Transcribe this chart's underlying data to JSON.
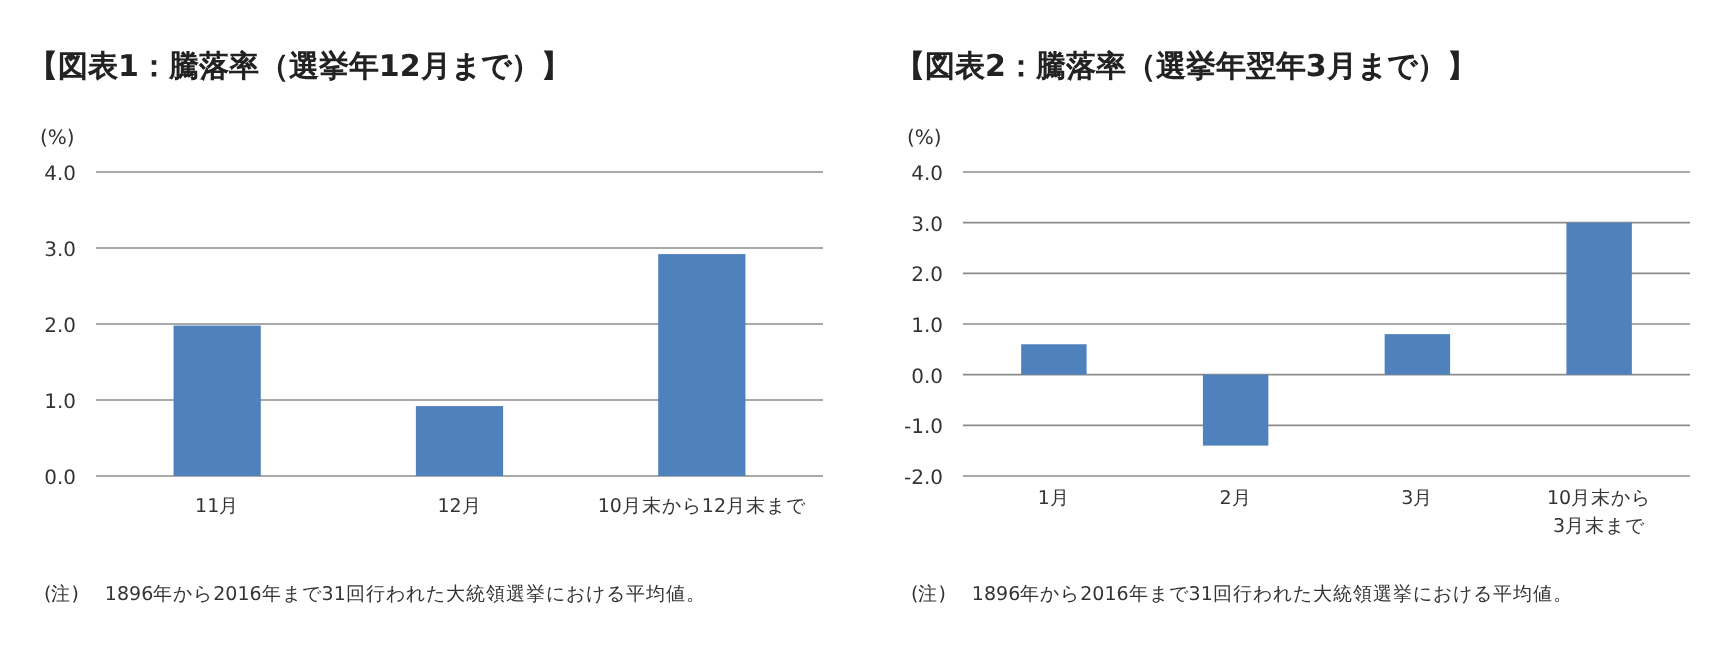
{
  "chart_data": [
    {
      "type": "bar",
      "title": "【図表1：騰落率（選挙年12月まで）】",
      "ylabel": "(%)",
      "categories": [
        "11月",
        "12月",
        "10月末から12月末まで"
      ],
      "values": [
        1.98,
        0.92,
        2.92
      ],
      "color": "#4f81bd",
      "ylim": [
        0,
        4
      ],
      "yticks": [
        {
          "value": 0,
          "label": "0.0"
        },
        {
          "value": 1,
          "label": "1.0"
        },
        {
          "value": 2,
          "label": "2.0"
        },
        {
          "value": 3,
          "label": "3.0"
        },
        {
          "value": 4,
          "label": "4.0"
        }
      ],
      "grid": "y",
      "annotations": [
        "(注)　 1896年から2016年まで31回行われた大統領選挙における平均値。"
      ]
    },
    {
      "type": "bar",
      "title": "【図表2：騰落率（選挙年翌年3月まで）】",
      "ylabel": "(%)",
      "categories": [
        "1月",
        "2月",
        "3月",
        "10月末から3月末まで"
      ],
      "values": [
        0.6,
        -1.4,
        0.8,
        3.0
      ],
      "color": "#4f81bd",
      "ylim": [
        -2,
        4
      ],
      "yticks": [
        {
          "value": -2,
          "label": "-2.0"
        },
        {
          "value": -1,
          "label": "-1.0"
        },
        {
          "value": 0,
          "label": "0.0"
        },
        {
          "value": 1,
          "label": "1.0"
        },
        {
          "value": 2,
          "label": "2.0"
        },
        {
          "value": 3,
          "label": "3.0"
        },
        {
          "value": 4,
          "label": "4.0"
        }
      ],
      "grid": "y",
      "annotations": [
        "(注)　 1896年から2016年まで31回行われた大統領選挙における平均値。"
      ]
    }
  ]
}
